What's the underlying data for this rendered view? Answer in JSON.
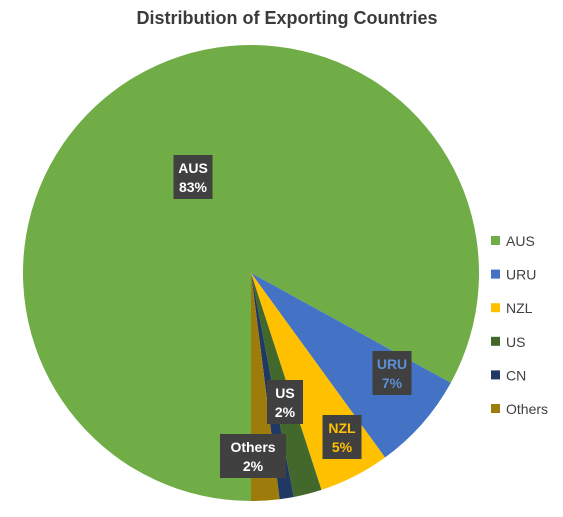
{
  "chart_data": {
    "type": "pie",
    "title": "Distribution of Exporting Countries",
    "slices": [
      {
        "label": "AUS",
        "value": 83,
        "display": "83%",
        "color": "#70ad47",
        "label_color": "#ffffff"
      },
      {
        "label": "URU",
        "value": 7,
        "display": "7%",
        "color": "#4472c4",
        "label_color": "#5b8fd6"
      },
      {
        "label": "NZL",
        "value": 5,
        "display": "5%",
        "color": "#ffc000",
        "label_color": "#ffc000"
      },
      {
        "label": "US",
        "value": 2,
        "display": "2%",
        "color": "#43682b",
        "label_color": "#ffffff"
      },
      {
        "label": "CN",
        "value": 1,
        "display": "",
        "color": "#203864",
        "label_color": "#ffffff"
      },
      {
        "label": "Others",
        "value": 2,
        "display": "2%",
        "color": "#9e7c0c",
        "label_color": "#ffffff"
      }
    ],
    "legend_position": "right",
    "label_box_color": "#404040"
  }
}
